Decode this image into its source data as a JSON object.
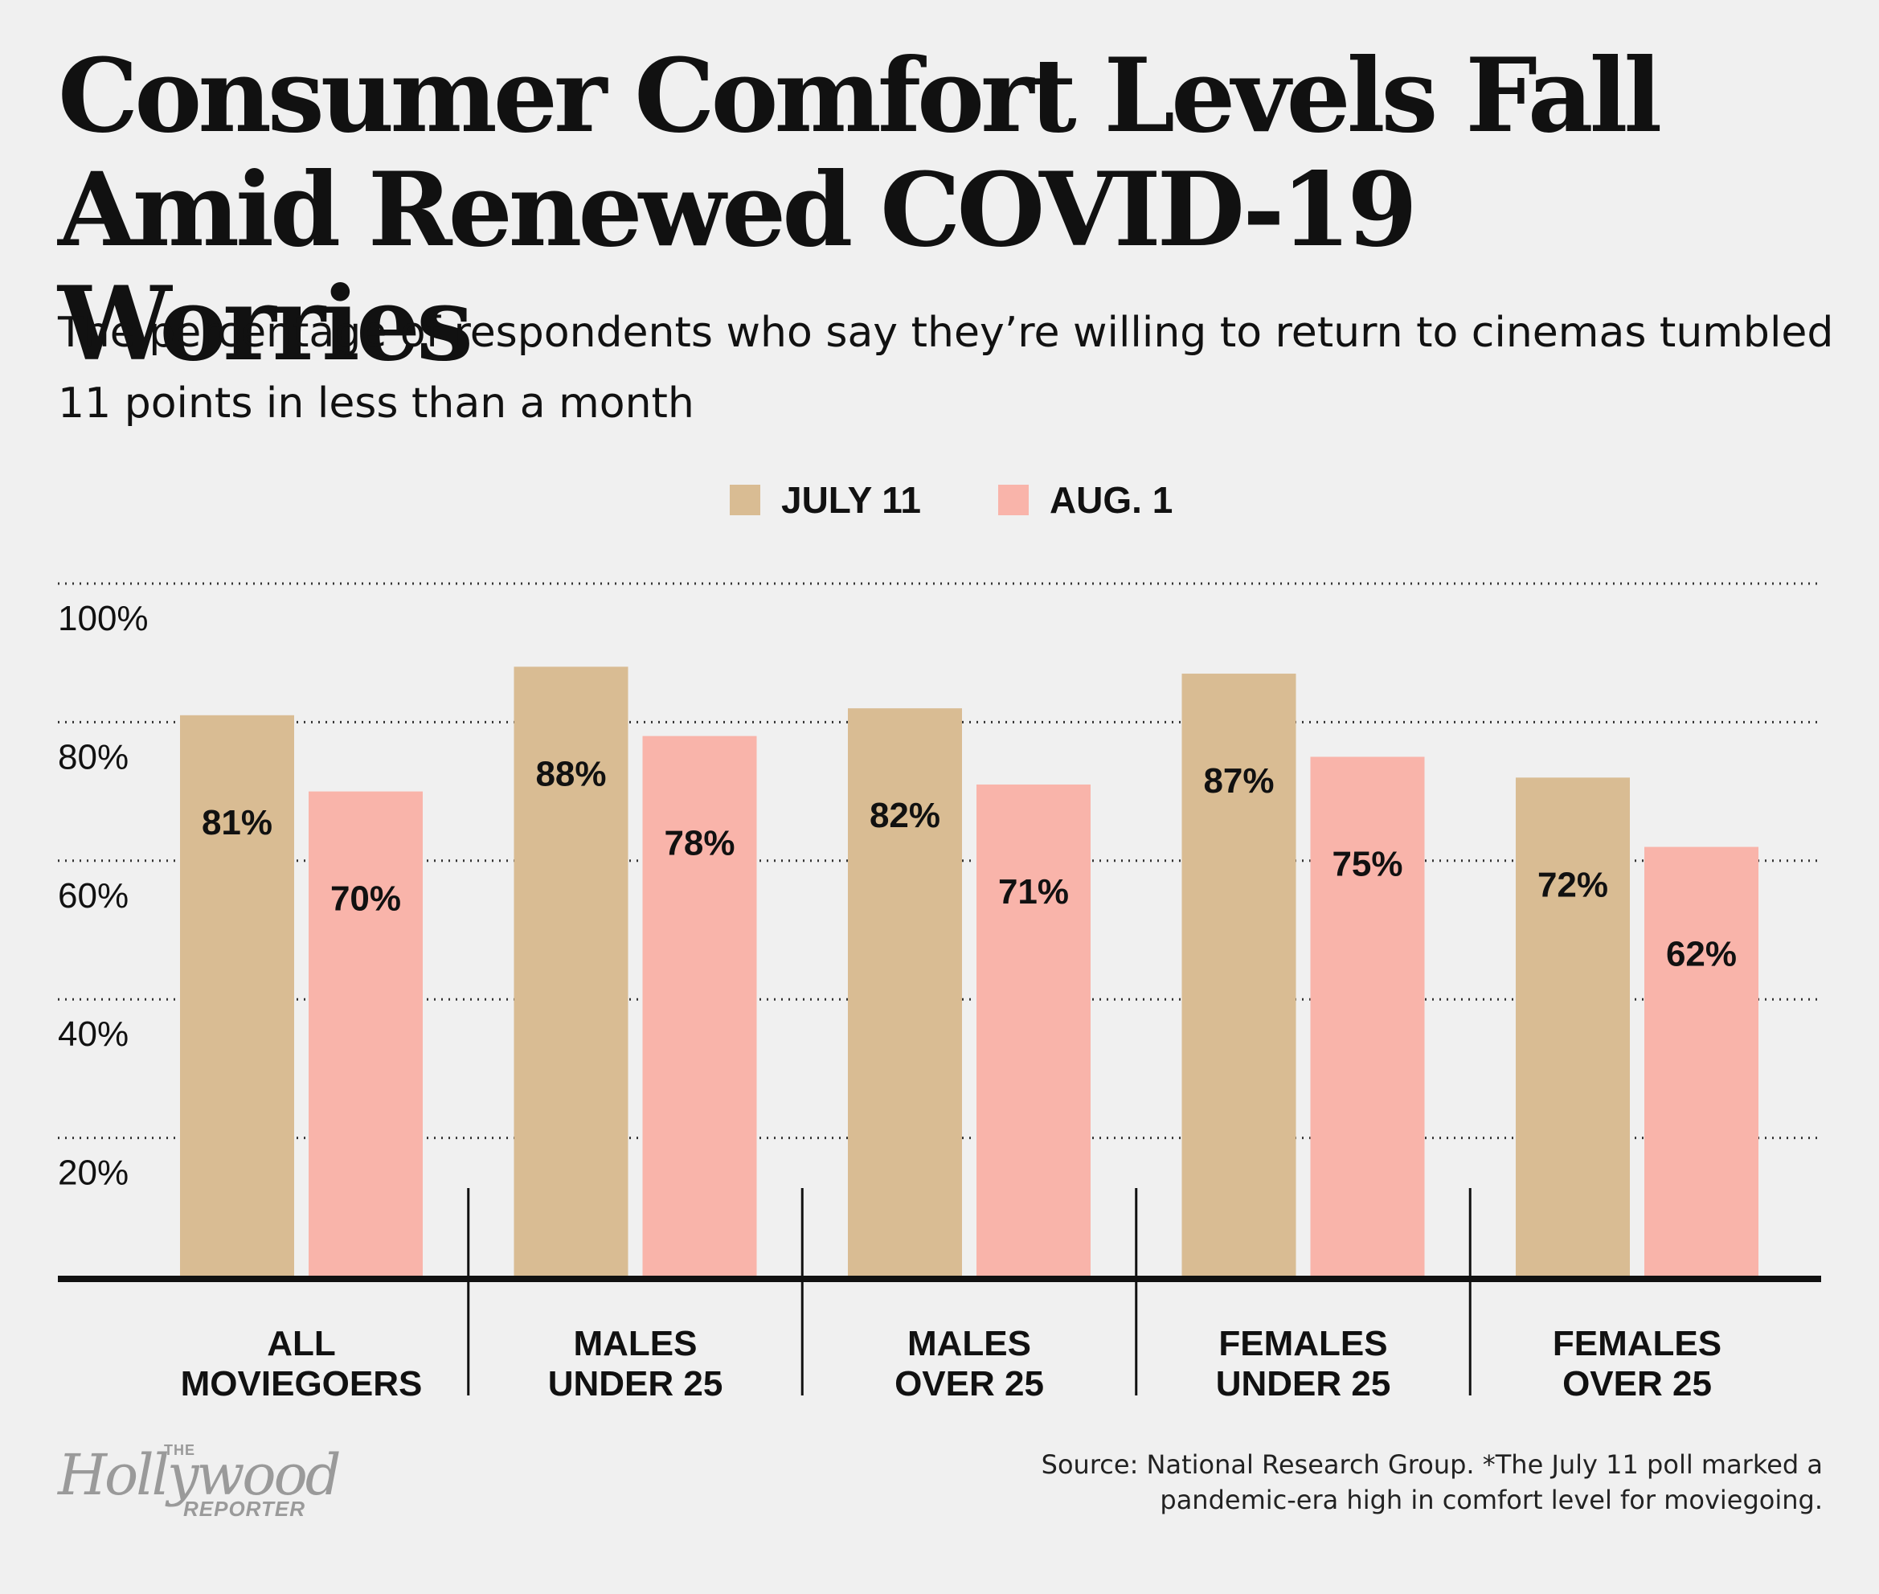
{
  "title": "Consumer Comfort Levels Fall Amid Renewed COVID-19 Worries",
  "subtitle": "The percentage of respondents who say they’re willing to return to cinemas tumbled 11 points in less than a month",
  "source_lines": [
    "Source: National Research Group. *The July 11 poll marked a",
    "pandemic-era high in comfort level for moviegoing."
  ],
  "logo": {
    "the": "THE",
    "name": "Hollywood",
    "reporter": "REPORTER"
  },
  "colors": {
    "july": "#d9bc93",
    "aug": "#f9b4aa",
    "axis": "#111111",
    "grid": "#333333",
    "background": "#f0f0f0"
  },
  "chart_data": {
    "type": "bar",
    "title": "Consumer Comfort Levels Fall Amid Renewed COVID-19 Worries",
    "xlabel": "",
    "ylabel": "",
    "ylim": [
      0,
      100
    ],
    "yticks": [
      20,
      40,
      60,
      80,
      100
    ],
    "ytick_labels": [
      "20%",
      "40%",
      "60%",
      "80%",
      "100%"
    ],
    "grid": true,
    "legend_position": "top-center",
    "categories": [
      [
        "ALL",
        "MOVIEGOERS"
      ],
      [
        "MALES",
        "UNDER 25"
      ],
      [
        "MALES",
        "OVER 25"
      ],
      [
        "FEMALES",
        "UNDER 25"
      ],
      [
        "FEMALES",
        "OVER 25"
      ]
    ],
    "series": [
      {
        "name": "JULY 11",
        "color": "#d9bc93",
        "values": [
          81,
          88,
          82,
          87,
          72
        ],
        "labels": [
          "81%",
          "88%",
          "82%",
          "87%",
          "72%"
        ]
      },
      {
        "name": "AUG. 1",
        "color": "#f9b4aa",
        "values": [
          70,
          78,
          71,
          75,
          62
        ],
        "labels": [
          "70%",
          "78%",
          "71%",
          "75%",
          "62%"
        ]
      }
    ]
  }
}
